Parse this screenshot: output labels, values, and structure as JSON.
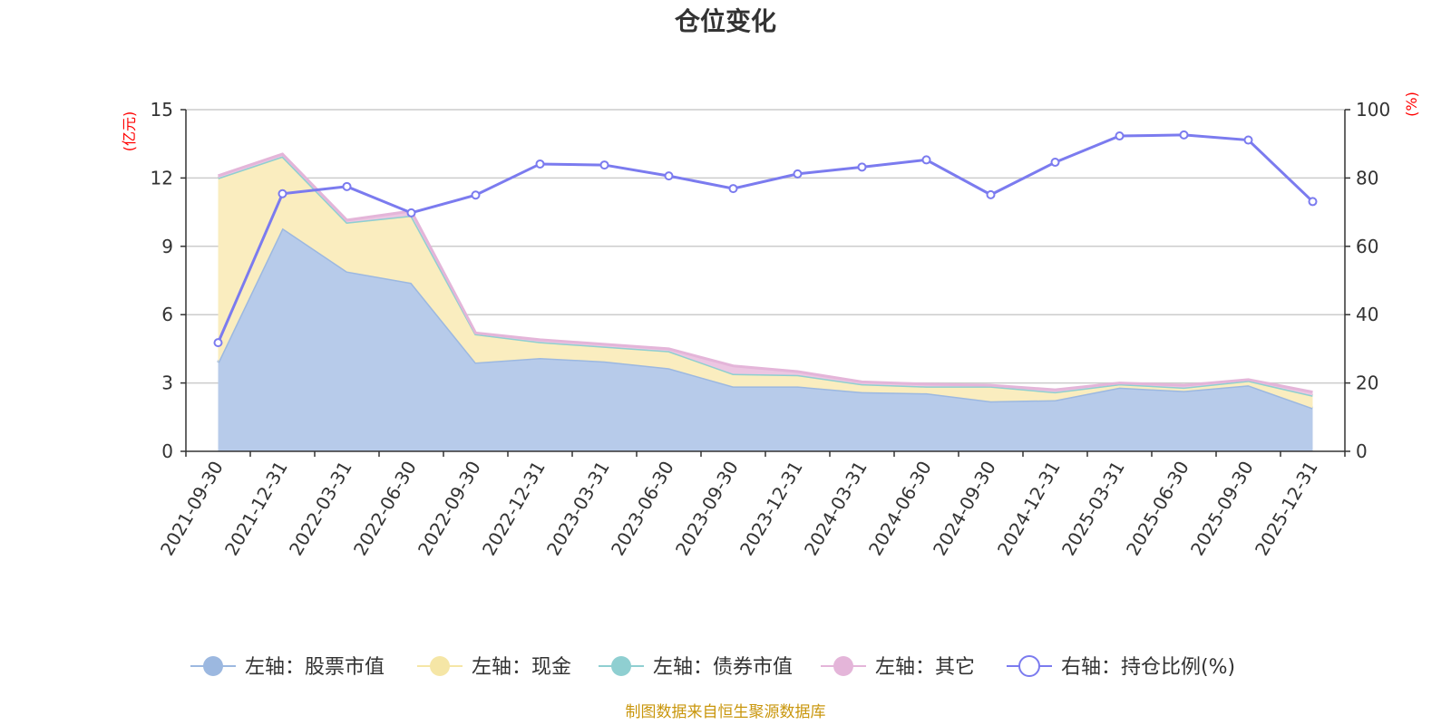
{
  "chart_data": {
    "type": "area",
    "title": "仓位变化",
    "left_unit": "(亿元)",
    "right_unit": "(%)",
    "ylim_left": [
      0,
      15
    ],
    "ylim_right": [
      0,
      100
    ],
    "left_ticks": [
      "0",
      "3",
      "6",
      "9",
      "12",
      "15"
    ],
    "right_ticks": [
      "0",
      "20",
      "40",
      "60",
      "80",
      "100"
    ],
    "categories": [
      "2021-09-30",
      "2021-12-31",
      "2022-03-31",
      "2022-06-30",
      "2022-09-30",
      "2022-12-31",
      "2023-03-31",
      "2023-06-30",
      "2023-09-30",
      "2023-12-31",
      "2024-03-31",
      "2024-06-30",
      "2024-09-30",
      "2024-12-31",
      "2025-03-31",
      "2025-06-30",
      "2025-09-30",
      "2025-12-31"
    ],
    "series": [
      {
        "name": "左轴：股票市值",
        "axis": "left",
        "stack": true,
        "color": "#9cb8e0",
        "fill": "#b7cbea",
        "values": [
          3.9,
          9.8,
          7.9,
          7.4,
          3.9,
          4.1,
          3.95,
          3.65,
          2.85,
          2.85,
          2.6,
          2.55,
          2.2,
          2.25,
          2.8,
          2.65,
          2.9,
          1.9
        ]
      },
      {
        "name": "左轴：现金",
        "axis": "left",
        "stack": true,
        "color": "#f5e6a6",
        "fill": "#faedbf",
        "values": [
          8.1,
          3.15,
          2.15,
          2.95,
          1.25,
          0.7,
          0.65,
          0.75,
          0.55,
          0.5,
          0.35,
          0.3,
          0.65,
          0.35,
          0.15,
          0.15,
          0.2,
          0.55
        ]
      },
      {
        "name": "左轴：债券市值",
        "axis": "left",
        "stack": true,
        "color": "#8fcfd1",
        "fill": "#a9dcdd",
        "values": [
          0,
          0,
          0,
          0,
          0,
          0,
          0,
          0,
          0,
          0,
          0,
          0,
          0,
          0,
          0,
          0,
          0,
          0
        ]
      },
      {
        "name": "左轴：其它",
        "axis": "left",
        "stack": true,
        "color": "#e4b5d9",
        "fill": "#ecc6e2",
        "values": [
          0.1,
          0.1,
          0.1,
          0.2,
          0.05,
          0.1,
          0.1,
          0.1,
          0.35,
          0.15,
          0.1,
          0.1,
          0.05,
          0.1,
          0.05,
          0.1,
          0.05,
          0.15
        ]
      },
      {
        "name": "右轴：持仓比例(%)",
        "axis": "right",
        "stack": false,
        "color": "#7b7bef",
        "values": [
          31.8,
          75.4,
          77.5,
          69.8,
          75.0,
          84.1,
          83.8,
          80.6,
          76.9,
          81.2,
          83.2,
          85.3,
          75.1,
          84.6,
          92.3,
          92.6,
          91.1,
          73.1
        ]
      }
    ],
    "source": "制图数据来自恒生聚源数据库",
    "legend_position": "bottom"
  }
}
